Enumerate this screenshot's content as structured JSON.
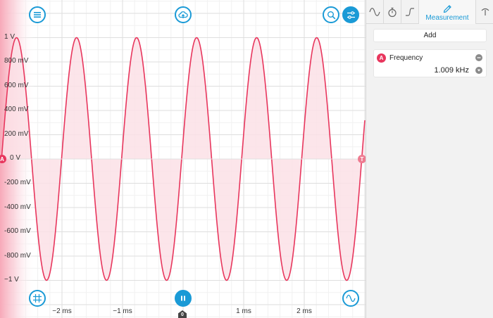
{
  "toolbar": {
    "menu_icon": "hamburger-menu-icon",
    "cloud_icon": "cloud-upload-icon",
    "zoom_icon": "zoom-search-icon",
    "settings_icon": "sliders-settings-icon",
    "grid_icon": "grid-toggle-icon",
    "pause_icon": "pause-icon",
    "wave_icon": "sine-wave-icon"
  },
  "y_axis": {
    "labels": [
      "1 V",
      "800 mV",
      "600 mV",
      "400 mV",
      "200 mV",
      "0 V",
      "-200 mV",
      "-400 mV",
      "-600 mV",
      "-800 mV",
      "−1 V"
    ]
  },
  "x_axis": {
    "labels": [
      "−2 ms",
      "−1 ms",
      "1 ms",
      "2 ms"
    ]
  },
  "markers": {
    "channel": "A",
    "trigger": "T",
    "time_zero": "0"
  },
  "chart_data": {
    "type": "line",
    "series": [
      {
        "name": "A",
        "waveform": "sine",
        "frequency_khz": 1.009,
        "amplitude_v": 1.0,
        "peak_times_ms": [
          -2.75,
          -1.76,
          -0.77,
          0.22,
          1.21,
          2.2
        ]
      }
    ],
    "xlim_ms": [
      -3.0,
      3.0
    ],
    "ylim_v": [
      -1.0,
      1.0
    ],
    "grid": true,
    "colors": {
      "trace": "#e8365d",
      "fill": "#fbe0e6",
      "accent": "#1a9ad6"
    }
  },
  "panel": {
    "tabs": [
      {
        "icon": "waveform-tab-icon"
      },
      {
        "icon": "stopwatch-tab-icon"
      },
      {
        "icon": "edge-trigger-tab-icon"
      },
      {
        "icon": "ruler-pencil-icon",
        "label": "Measurement"
      },
      {
        "icon": "probe-tab-icon"
      }
    ],
    "add_label": "Add",
    "measurement": {
      "channel": "A",
      "name": "Frequency",
      "value": "1.009 kHz"
    }
  }
}
